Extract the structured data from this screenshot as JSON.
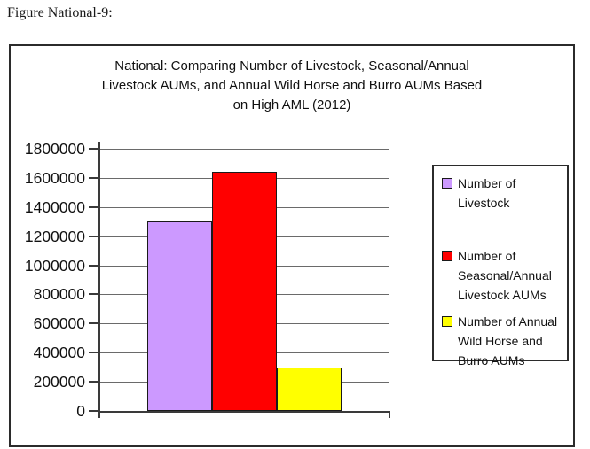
{
  "figure": {
    "caption": "Figure National-9:"
  },
  "chart_data": {
    "type": "bar",
    "title": "National: Comparing Number of Livestock, Seasonal/Annual\nLivestock AUMs, and Annual Wild Horse and Burro AUMs Based\non High AML (2012)",
    "series": [
      {
        "name": "Number of Livestock",
        "value": 1300000,
        "color": "#CC99FF"
      },
      {
        "name": "Number of Seasonal/Annual Livestock AUMs",
        "value": 1640000,
        "color": "#FF0000"
      },
      {
        "name": "Number of Annual Wild Horse and Burro AUMs",
        "value": 300000,
        "color": "#FFFF00"
      }
    ],
    "ylim": [
      0,
      1800000
    ],
    "ytick_step": 200000,
    "ytick_labels": [
      "1800000",
      "1600000",
      "1400000",
      "1200000",
      "1000000",
      "800000",
      "600000",
      "400000",
      "200000",
      "0"
    ],
    "xtick_labels": [],
    "grid": true,
    "gridline_color": "#6a6a6a",
    "axis_color": "#3a3a3a",
    "plot_background": "#ffffff",
    "legend_position": "right",
    "legend": {
      "items": [
        {
          "label": "Number of\nLivestock",
          "color": "#CC99FF"
        },
        {
          "label": "Number of\nSeasonal/Annual\nLivestock AUMs",
          "color": "#FF0000"
        },
        {
          "label": "Number of Annual\nWild Horse and\nBurro AUMs",
          "color": "#FFFF00"
        }
      ]
    }
  }
}
